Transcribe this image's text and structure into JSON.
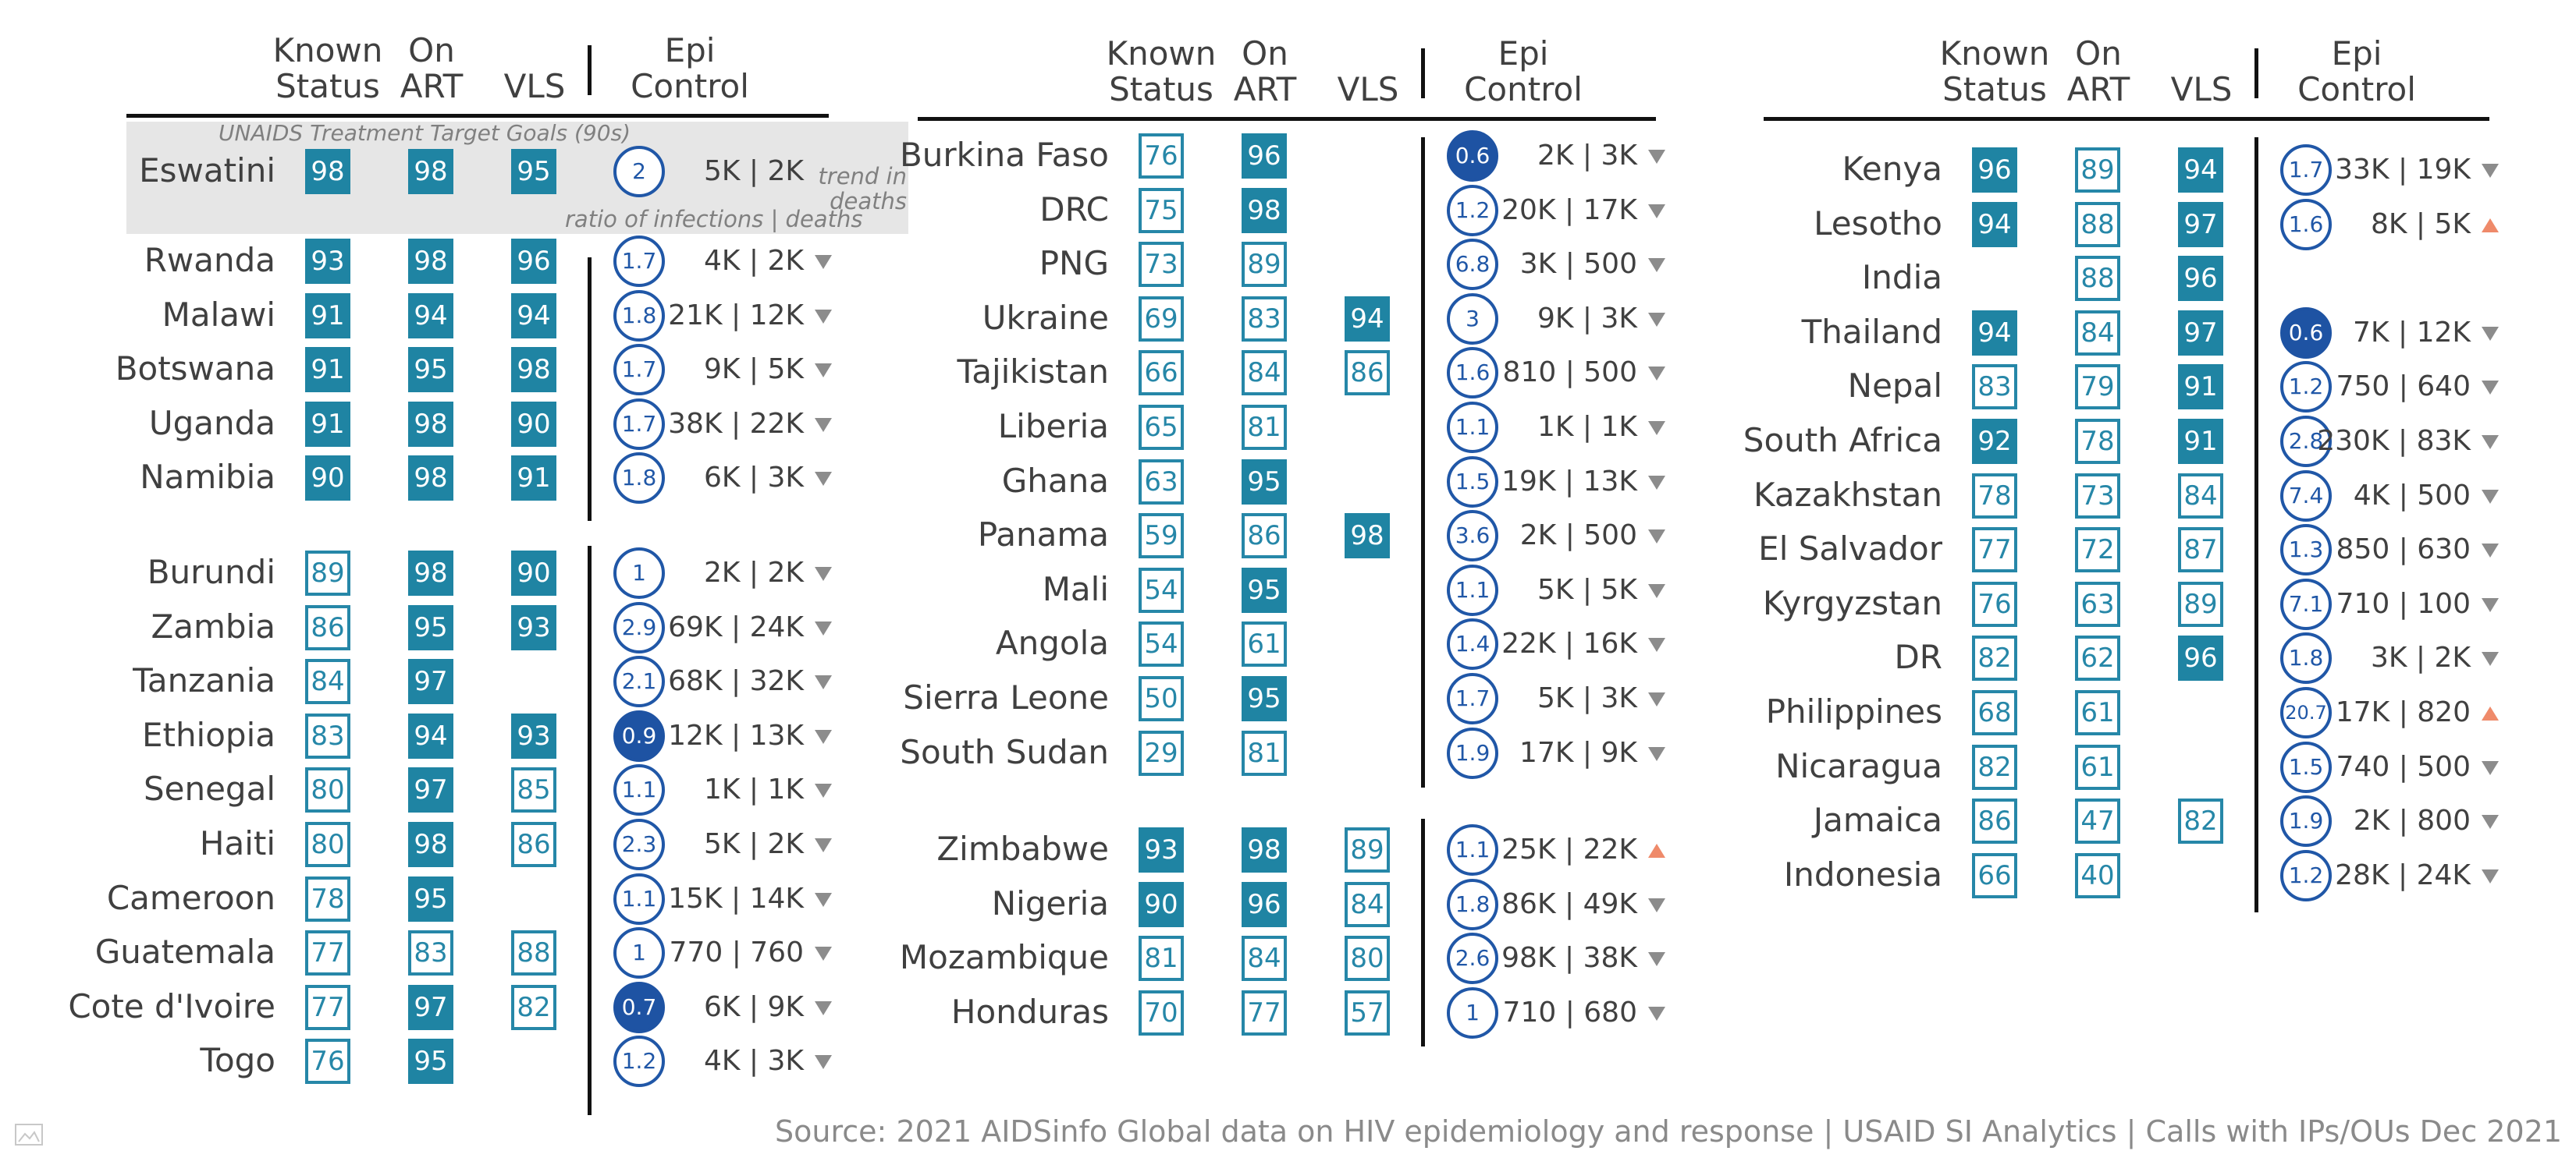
{
  "chart_data": {
    "type": "table",
    "columns": {
      "known_status": "Known Status",
      "on_art": "On ART",
      "vls": "VLS",
      "epi_control": "Epi Control"
    },
    "annotations": {
      "goal_label": "UNAIDS Treatment Target Goals (90s)",
      "ratio_label": "ratio of infections | deaths",
      "trend_label": "trend in deaths"
    },
    "source": "Source: 2021 AIDSinfo Global data on HIV epidemiology and response | USAID SI Analytics | Calls with IPs/OUs Dec 2021",
    "colors": {
      "teal_accent": "#1f84a3",
      "blue_accent": "#1e53a3",
      "trend_down": "#8c8c8c",
      "trend_up": "#ef8a6a"
    },
    "panels": [
      {
        "groups": [
          {
            "goal": true,
            "rows": [
              {
                "country": "Eswatini",
                "known_status": 98,
                "on_art": 98,
                "vls": 95,
                "epi_ratio": 2,
                "infections_deaths": "5K | 2K",
                "trend": "none"
              }
            ]
          },
          {
            "rows": [
              {
                "country": "Rwanda",
                "known_status": 93,
                "on_art": 98,
                "vls": 96,
                "epi_ratio": 1.7,
                "infections_deaths": "4K | 2K",
                "trend": "down"
              },
              {
                "country": "Malawi",
                "known_status": 91,
                "on_art": 94,
                "vls": 94,
                "epi_ratio": 1.8,
                "infections_deaths": "21K | 12K",
                "trend": "down"
              },
              {
                "country": "Botswana",
                "known_status": 91,
                "on_art": 95,
                "vls": 98,
                "epi_ratio": 1.7,
                "infections_deaths": "9K | 5K",
                "trend": "down"
              },
              {
                "country": "Uganda",
                "known_status": 91,
                "on_art": 98,
                "vls": 90,
                "epi_ratio": 1.7,
                "infections_deaths": "38K | 22K",
                "trend": "down"
              },
              {
                "country": "Namibia",
                "known_status": 90,
                "on_art": 98,
                "vls": 91,
                "epi_ratio": 1.8,
                "infections_deaths": "6K | 3K",
                "trend": "down"
              }
            ]
          },
          {
            "rows": [
              {
                "country": "Burundi",
                "known_status": 89,
                "on_art": 98,
                "vls": 90,
                "epi_ratio": 1,
                "infections_deaths": "2K | 2K",
                "trend": "down"
              },
              {
                "country": "Zambia",
                "known_status": 86,
                "on_art": 95,
                "vls": 93,
                "epi_ratio": 2.9,
                "infections_deaths": "69K | 24K",
                "trend": "down"
              },
              {
                "country": "Tanzania",
                "known_status": 84,
                "on_art": 97,
                "vls": null,
                "epi_ratio": 2.1,
                "infections_deaths": "68K | 32K",
                "trend": "down"
              },
              {
                "country": "Ethiopia",
                "known_status": 83,
                "on_art": 94,
                "vls": 93,
                "epi_ratio": 0.9,
                "infections_deaths": "12K | 13K",
                "trend": "down"
              },
              {
                "country": "Senegal",
                "known_status": 80,
                "on_art": 97,
                "vls": 85,
                "epi_ratio": 1.1,
                "infections_deaths": "1K | 1K",
                "trend": "down"
              },
              {
                "country": "Haiti",
                "known_status": 80,
                "on_art": 98,
                "vls": 86,
                "epi_ratio": 2.3,
                "infections_deaths": "5K | 2K",
                "trend": "down"
              },
              {
                "country": "Cameroon",
                "known_status": 78,
                "on_art": 95,
                "vls": null,
                "epi_ratio": 1.1,
                "infections_deaths": "15K | 14K",
                "trend": "down"
              },
              {
                "country": "Guatemala",
                "known_status": 77,
                "on_art": 83,
                "vls": 88,
                "epi_ratio": 1,
                "infections_deaths": "770 | 760",
                "trend": "down"
              },
              {
                "country": "Cote d'Ivoire",
                "known_status": 77,
                "on_art": 97,
                "vls": 82,
                "epi_ratio": 0.7,
                "infections_deaths": "6K | 9K",
                "trend": "down"
              },
              {
                "country": "Togo",
                "known_status": 76,
                "on_art": 95,
                "vls": null,
                "epi_ratio": 1.2,
                "infections_deaths": "4K | 3K",
                "trend": "down"
              }
            ]
          }
        ]
      },
      {
        "groups": [
          {
            "rows": [
              {
                "country": "Burkina Faso",
                "known_status": 76,
                "on_art": 96,
                "vls": null,
                "epi_ratio": 0.6,
                "infections_deaths": "2K | 3K",
                "trend": "down"
              },
              {
                "country": "DRC",
                "known_status": 75,
                "on_art": 98,
                "vls": null,
                "epi_ratio": 1.2,
                "infections_deaths": "20K | 17K",
                "trend": "down"
              },
              {
                "country": "PNG",
                "known_status": 73,
                "on_art": 89,
                "vls": null,
                "epi_ratio": 6.8,
                "infections_deaths": "3K | 500",
                "trend": "down"
              },
              {
                "country": "Ukraine",
                "known_status": 69,
                "on_art": 83,
                "vls": 94,
                "epi_ratio": 3,
                "infections_deaths": "9K | 3K",
                "trend": "down"
              },
              {
                "country": "Tajikistan",
                "known_status": 66,
                "on_art": 84,
                "vls": 86,
                "epi_ratio": 1.6,
                "infections_deaths": "810 | 500",
                "trend": "down"
              },
              {
                "country": "Liberia",
                "known_status": 65,
                "on_art": 81,
                "vls": null,
                "epi_ratio": 1.1,
                "infections_deaths": "1K | 1K",
                "trend": "down"
              },
              {
                "country": "Ghana",
                "known_status": 63,
                "on_art": 95,
                "vls": null,
                "epi_ratio": 1.5,
                "infections_deaths": "19K | 13K",
                "trend": "down"
              },
              {
                "country": "Panama",
                "known_status": 59,
                "on_art": 86,
                "vls": 98,
                "epi_ratio": 3.6,
                "infections_deaths": "2K | 500",
                "trend": "down"
              },
              {
                "country": "Mali",
                "known_status": 54,
                "on_art": 95,
                "vls": null,
                "epi_ratio": 1.1,
                "infections_deaths": "5K | 5K",
                "trend": "down"
              },
              {
                "country": "Angola",
                "known_status": 54,
                "on_art": 61,
                "vls": null,
                "epi_ratio": 1.4,
                "infections_deaths": "22K | 16K",
                "trend": "down"
              },
              {
                "country": "Sierra Leone",
                "known_status": 50,
                "on_art": 95,
                "vls": null,
                "epi_ratio": 1.7,
                "infections_deaths": "5K | 3K",
                "trend": "down"
              },
              {
                "country": "South Sudan",
                "known_status": 29,
                "on_art": 81,
                "vls": null,
                "epi_ratio": 1.9,
                "infections_deaths": "17K | 9K",
                "trend": "down"
              }
            ]
          },
          {
            "rows": [
              {
                "country": "Zimbabwe",
                "known_status": 93,
                "on_art": 98,
                "vls": 89,
                "epi_ratio": 1.1,
                "infections_deaths": "25K | 22K",
                "trend": "up"
              },
              {
                "country": "Nigeria",
                "known_status": 90,
                "on_art": 96,
                "vls": 84,
                "epi_ratio": 1.8,
                "infections_deaths": "86K | 49K",
                "trend": "down"
              },
              {
                "country": "Mozambique",
                "known_status": 81,
                "on_art": 84,
                "vls": 80,
                "epi_ratio": 2.6,
                "infections_deaths": "98K | 38K",
                "trend": "down"
              },
              {
                "country": "Honduras",
                "known_status": 70,
                "on_art": 77,
                "vls": 57,
                "epi_ratio": 1,
                "infections_deaths": "710 | 680",
                "trend": "down"
              }
            ]
          }
        ]
      },
      {
        "groups": [
          {
            "rows": [
              {
                "country": "Kenya",
                "known_status": 96,
                "on_art": 89,
                "vls": 94,
                "epi_ratio": 1.7,
                "infections_deaths": "33K | 19K",
                "trend": "down"
              },
              {
                "country": "Lesotho",
                "known_status": 94,
                "on_art": 88,
                "vls": 97,
                "epi_ratio": 1.6,
                "infections_deaths": "8K | 5K",
                "trend": "up"
              },
              {
                "country": "India",
                "known_status": null,
                "on_art": 88,
                "vls": 96,
                "epi_ratio": null,
                "infections_deaths": "",
                "trend": "none"
              },
              {
                "country": "Thailand",
                "known_status": 94,
                "on_art": 84,
                "vls": 97,
                "epi_ratio": 0.6,
                "infections_deaths": "7K | 12K",
                "trend": "down"
              },
              {
                "country": "Nepal",
                "known_status": 83,
                "on_art": 79,
                "vls": 91,
                "epi_ratio": 1.2,
                "infections_deaths": "750 | 640",
                "trend": "down"
              },
              {
                "country": "South Africa",
                "known_status": 92,
                "on_art": 78,
                "vls": 91,
                "epi_ratio": 2.8,
                "infections_deaths": "230K | 83K",
                "trend": "down"
              },
              {
                "country": "Kazakhstan",
                "known_status": 78,
                "on_art": 73,
                "vls": 84,
                "epi_ratio": 7.4,
                "infections_deaths": "4K | 500",
                "trend": "down"
              },
              {
                "country": "El Salvador",
                "known_status": 77,
                "on_art": 72,
                "vls": 87,
                "epi_ratio": 1.3,
                "infections_deaths": "850 | 630",
                "trend": "down"
              },
              {
                "country": "Kyrgyzstan",
                "known_status": 76,
                "on_art": 63,
                "vls": 89,
                "epi_ratio": 7.1,
                "infections_deaths": "710 | 100",
                "trend": "down"
              },
              {
                "country": "DR",
                "known_status": 82,
                "on_art": 62,
                "vls": 96,
                "epi_ratio": 1.8,
                "infections_deaths": "3K | 2K",
                "trend": "down"
              },
              {
                "country": "Philippines",
                "known_status": 68,
                "on_art": 61,
                "vls": null,
                "epi_ratio": 20.7,
                "infections_deaths": "17K | 820",
                "trend": "up"
              },
              {
                "country": "Nicaragua",
                "known_status": 82,
                "on_art": 61,
                "vls": null,
                "epi_ratio": 1.5,
                "infections_deaths": "740 | 500",
                "trend": "down"
              },
              {
                "country": "Jamaica",
                "known_status": 86,
                "on_art": 47,
                "vls": 82,
                "epi_ratio": 1.9,
                "infections_deaths": "2K | 800",
                "trend": "down"
              },
              {
                "country": "Indonesia",
                "known_status": 66,
                "on_art": 40,
                "vls": null,
                "epi_ratio": 1.2,
                "infections_deaths": "28K | 24K",
                "trend": "down"
              }
            ]
          }
        ]
      }
    ]
  }
}
